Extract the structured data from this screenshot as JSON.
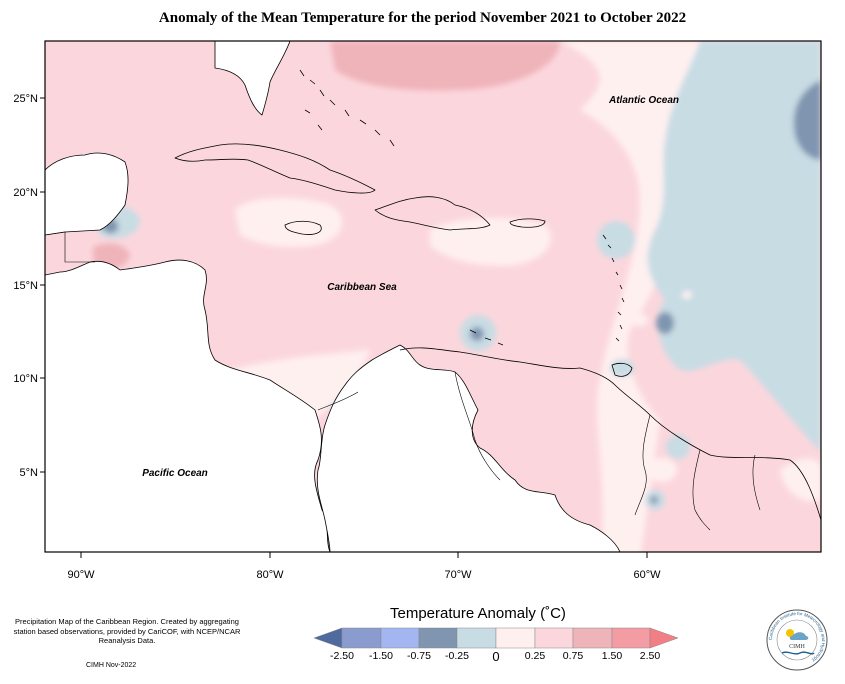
{
  "title": "Anomaly of the Mean Temperature for the period November 2021 to October 2022",
  "map": {
    "lat_labels": [
      "25°N",
      "20°N",
      "15°N",
      "10°N",
      "5°N"
    ],
    "lon_labels": [
      "90°W",
      "80°W",
      "70°W",
      "60°W"
    ],
    "ocean_labels": {
      "atlantic": "Atlantic Ocean",
      "caribbean": "Caribbean Sea",
      "pacific": "Pacific Ocean"
    }
  },
  "legend": {
    "title": "Temperature Anomaly (˚C)",
    "tick_labels": [
      "-2.50",
      "-1.50",
      "-0.75",
      "-0.25",
      "0",
      "0.25",
      "0.75",
      "1.50",
      "2.50"
    ],
    "colors": [
      "#4f6a9e",
      "#8a9bd0",
      "#a3b6f2",
      "#7f95b0",
      "#c8dce4",
      "#fff0f0",
      "#fbd7dd",
      "#efb4ba",
      "#f49ca4",
      "#f27e86"
    ]
  },
  "footnote": "Precipitation Map of the Caribbean Region. Created by aggregating station based observations, provided by CariCOF, with NCEP/NCAR Reanalysis Data.",
  "credit": "CIMH Nov-2022",
  "logo": {
    "ring_text": "Caribbean Institute for Meteorology and Hydrology",
    "center_text": "CIMH"
  }
}
